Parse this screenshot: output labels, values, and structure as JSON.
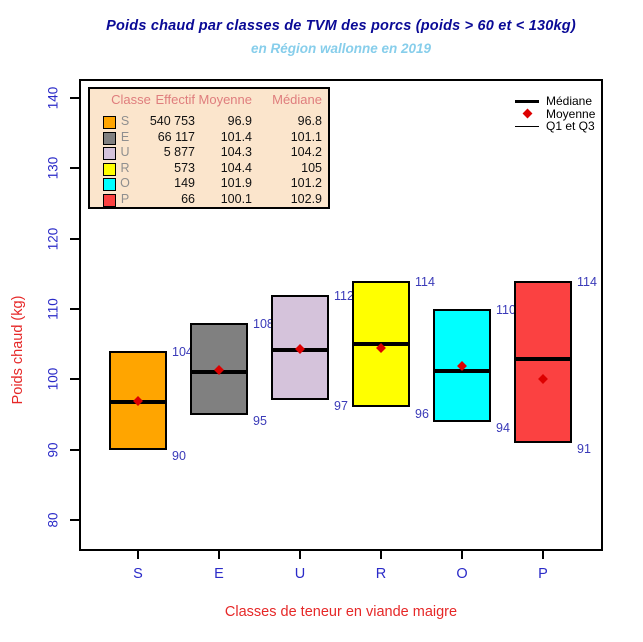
{
  "title": "Poids chaud par classes de TVM des porcs (poids > 60 et < 130kg)",
  "subtitle": "en Région wallonne en 2019",
  "y_axis": {
    "label": "Poids chaud (kg)",
    "ticks": [
      80,
      90,
      100,
      110,
      120,
      130,
      140
    ]
  },
  "x_axis": {
    "label": "Classes de teneur en viande maigre"
  },
  "stats_legend": {
    "headers": [
      "Classe",
      "Effectif",
      "Moyenne",
      "Médiane"
    ],
    "rows": [
      {
        "classe": "S",
        "color": "#FFA500",
        "effectif": "540 753",
        "moyenne": "96.9",
        "mediane": "96.8"
      },
      {
        "classe": "E",
        "color": "#808080",
        "effectif": "66 117",
        "moyenne": "101.4",
        "mediane": "101.1"
      },
      {
        "classe": "U",
        "color": "#D5C3DB",
        "effectif": "5 877",
        "moyenne": "104.3",
        "mediane": "104.2"
      },
      {
        "classe": "R",
        "color": "#FFFF00",
        "effectif": "573",
        "moyenne": "104.4",
        "mediane": "105"
      },
      {
        "classe": "O",
        "color": "#00FFFF",
        "effectif": "149",
        "moyenne": "101.9",
        "mediane": "101.2"
      },
      {
        "classe": "P",
        "color": "#FB4141",
        "effectif": "66",
        "moyenne": "100.1",
        "mediane": "102.9"
      }
    ]
  },
  "marker_legend": [
    {
      "symbol": "thick-line",
      "label": "Médiane"
    },
    {
      "symbol": "diamond",
      "label": "Moyenne"
    },
    {
      "symbol": "thin-line",
      "label": "Q1 et Q3"
    }
  ],
  "chart_data": {
    "type": "boxplot",
    "title": "Poids chaud par classes de TVM des porcs (poids > 60 et < 130kg)",
    "subtitle": "en Région wallonne en 2019",
    "xlabel": "Classes de teneur en viande maigre",
    "ylabel": "Poids chaud (kg)",
    "ylim": [
      75.6,
      142.7
    ],
    "yticks": [
      80,
      90,
      100,
      110,
      120,
      130,
      140
    ],
    "categories": [
      "S",
      "E",
      "U",
      "R",
      "O",
      "P"
    ],
    "series": [
      {
        "classe": "S",
        "q1": 90,
        "q3": 104,
        "median": 96.8,
        "mean": 96.9,
        "q1_label": "90",
        "q3_label": "104",
        "color": "#FFA500"
      },
      {
        "classe": "E",
        "q1": 95,
        "q3": 108,
        "median": 101.1,
        "mean": 101.4,
        "q1_label": "95",
        "q3_label": "108",
        "color": "#808080"
      },
      {
        "classe": "U",
        "q1": 97,
        "q3": 112,
        "median": 104.2,
        "mean": 104.3,
        "q1_label": "97",
        "q3_label": "112",
        "color": "#D5C3DB"
      },
      {
        "classe": "R",
        "q1": 96,
        "q3": 114,
        "median": 105,
        "mean": 104.4,
        "q1_label": "96",
        "q3_label": "114",
        "color": "#FFFF00"
      },
      {
        "classe": "O",
        "q1": 94,
        "q3": 110,
        "median": 101.2,
        "mean": 101.9,
        "q1_label": "94",
        "q3_label": "110",
        "color": "#00FFFF"
      },
      {
        "classe": "P",
        "q1": 91,
        "q3": 114,
        "median": 102.9,
        "mean": 100.1,
        "q1_label": "91",
        "q3_label": "114",
        "color": "#FB4141"
      }
    ],
    "mean_marker_color": "#DD0000",
    "grid": false,
    "legend_position": "top-right-inside"
  }
}
